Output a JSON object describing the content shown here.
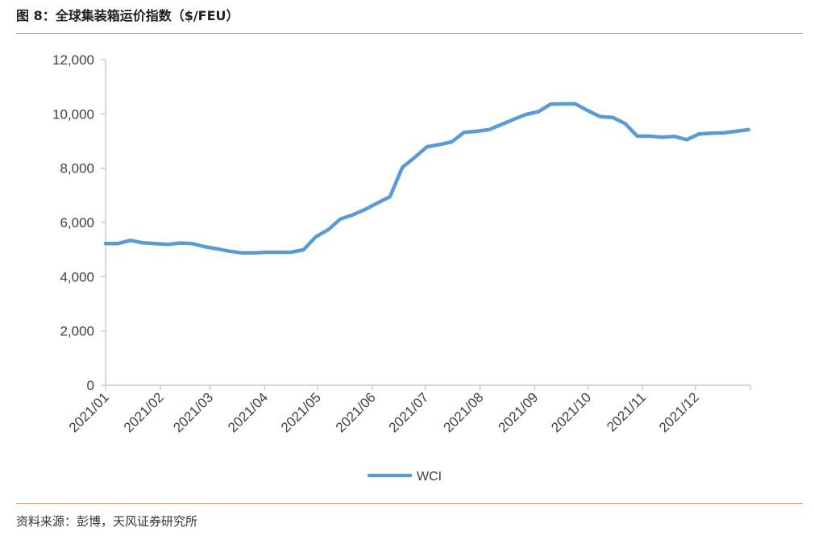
{
  "figure": {
    "title": "图 8：全球集装箱运价指数（$/FEU）",
    "source": "资料来源：彭博，天风证券研究所"
  },
  "chart_data": {
    "type": "line",
    "title": "",
    "xlabel": "",
    "ylabel": "",
    "ylim": [
      0,
      12000
    ],
    "yticks": [
      0,
      2000,
      4000,
      6000,
      8000,
      10000,
      12000
    ],
    "ytick_labels": [
      "0",
      "2,000",
      "4,000",
      "6,000",
      "8,000",
      "10,000",
      "12,000"
    ],
    "xtick_labels": [
      "2021/01",
      "2021/02",
      "2021/03",
      "2021/04",
      "2021/05",
      "2021/06",
      "2021/07",
      "2021/08",
      "2021/09",
      "2021/10",
      "2021/11",
      "2021/12"
    ],
    "grid": false,
    "legend": "bottom",
    "colors": {
      "series": "#5b9bd5",
      "axis": "#bfbfbf",
      "rule": "#c9a46a"
    },
    "series": [
      {
        "name": "WCI",
        "x": [
          "2021-01-01",
          "2021-01-08",
          "2021-01-15",
          "2021-01-22",
          "2021-01-29",
          "2021-02-05",
          "2021-02-12",
          "2021-02-19",
          "2021-02-26",
          "2021-03-05",
          "2021-03-12",
          "2021-03-19",
          "2021-03-26",
          "2021-04-02",
          "2021-04-09",
          "2021-04-16",
          "2021-04-23",
          "2021-04-30",
          "2021-05-07",
          "2021-05-14",
          "2021-05-21",
          "2021-05-28",
          "2021-06-04",
          "2021-06-11",
          "2021-06-18",
          "2021-06-25",
          "2021-07-02",
          "2021-07-09",
          "2021-07-16",
          "2021-07-23",
          "2021-07-30",
          "2021-08-06",
          "2021-08-13",
          "2021-08-20",
          "2021-08-27",
          "2021-09-03",
          "2021-09-10",
          "2021-09-17",
          "2021-09-24",
          "2021-10-01",
          "2021-10-08",
          "2021-10-15",
          "2021-10-22",
          "2021-10-29",
          "2021-11-05",
          "2021-11-12",
          "2021-11-19",
          "2021-11-26",
          "2021-12-03",
          "2021-12-10",
          "2021-12-17",
          "2021-12-24",
          "2021-12-31"
        ],
        "values": [
          5220,
          5221,
          5340,
          5250,
          5220,
          5190,
          5240,
          5220,
          5110,
          5030,
          4940,
          4880,
          4880,
          4900,
          4900,
          4900,
          4990,
          5470,
          5730,
          6130,
          6280,
          6480,
          6720,
          6950,
          8030,
          8400,
          8790,
          8870,
          8970,
          9320,
          9360,
          9420,
          9610,
          9800,
          9980,
          10080,
          10360,
          10370,
          10370,
          10120,
          9900,
          9870,
          9650,
          9180,
          9180,
          9140,
          9170,
          9050,
          9260,
          9290,
          9300,
          9360,
          9420
        ]
      }
    ]
  }
}
